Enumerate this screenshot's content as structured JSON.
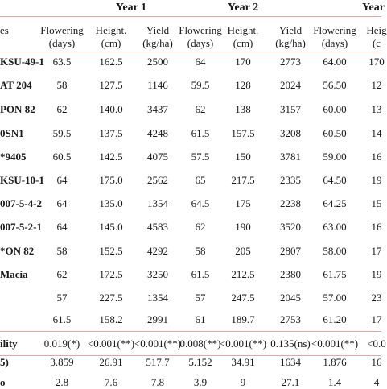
{
  "table": {
    "years": [
      "Year 1",
      "Year 2",
      "Year"
    ],
    "row_header": "es",
    "headers": [
      [
        "Flowering",
        "(days)"
      ],
      [
        "Height.",
        "(cm)"
      ],
      [
        "Yield",
        "(kg/ha)"
      ],
      [
        "Flowering",
        "(days)"
      ],
      [
        "Height.",
        "(cm)"
      ],
      [
        "Yield",
        "(kg/ha)"
      ],
      [
        "Flowering",
        "(days)"
      ],
      [
        "Heig",
        "(c"
      ]
    ],
    "rows": [
      {
        "label": "KSU-49-1",
        "values": [
          "63.5",
          "162.5",
          "2500",
          "64",
          "170",
          "2773",
          "64.00",
          "170"
        ]
      },
      {
        "label": "AT 204",
        "values": [
          "58",
          "127.5",
          "1146",
          "59.5",
          "128",
          "2024",
          "56.50",
          "12"
        ]
      },
      {
        "label": "PON 82",
        "values": [
          "62",
          "140.0",
          "3437",
          "62",
          "138",
          "3157",
          "60.00",
          "13"
        ]
      },
      {
        "label": "0SN1",
        "values": [
          "59.5",
          "137.5",
          "4248",
          "61.5",
          "157.5",
          "3208",
          "60.50",
          "14"
        ]
      },
      {
        "label": "*9405",
        "values": [
          "60.5",
          "142.5",
          "4075",
          "57.5",
          "150",
          "3781",
          "59.00",
          "16"
        ]
      },
      {
        "label": "KSU-10-1",
        "values": [
          "64",
          "175.0",
          "2562",
          "65",
          "217.5",
          "2335",
          "64.50",
          "19"
        ]
      },
      {
        "label": "007-5-4-2",
        "values": [
          "64",
          "135.0",
          "1354",
          "64.5",
          "175",
          "2238",
          "64.25",
          "15"
        ]
      },
      {
        "label": "007-5-2-1",
        "values": [
          "64",
          "145.0",
          "4583",
          "62",
          "190",
          "3520",
          "63.00",
          "16"
        ]
      },
      {
        "label": "*ON 82",
        "values": [
          "58",
          "152.5",
          "4292",
          "58",
          "205",
          "2807",
          "58.00",
          "17"
        ]
      },
      {
        "label": "Macia",
        "values": [
          "62",
          "172.5",
          "3250",
          "61.5",
          "212.5",
          "2380",
          "61.75",
          "19"
        ]
      },
      {
        "label": "",
        "values": [
          "57",
          "227.5",
          "1354",
          "57",
          "247.5",
          "2045",
          "57.00",
          "23"
        ]
      },
      {
        "label": "",
        "values": [
          "61.5",
          "158.2",
          "2991",
          "61",
          "189.7",
          "2753",
          "61.20",
          "17"
        ]
      },
      {
        "label": "ility",
        "values": [
          "0.019(*)",
          "<0.001(**)",
          "<0.001(**)",
          "0.008(**)",
          "<0.001(**)",
          "0.135(ns)",
          "<0.001(**)",
          "<0.0"
        ]
      },
      {
        "label": "5)",
        "values": [
          "3.859",
          "26.91",
          "517.7",
          "5.152",
          "34.91",
          "1634",
          "1.876",
          "16"
        ]
      },
      {
        "label": "o",
        "values": [
          "2.8",
          "7.6",
          "7.8",
          "3.9",
          "9",
          "27.1",
          "1.4",
          "4"
        ]
      }
    ]
  }
}
